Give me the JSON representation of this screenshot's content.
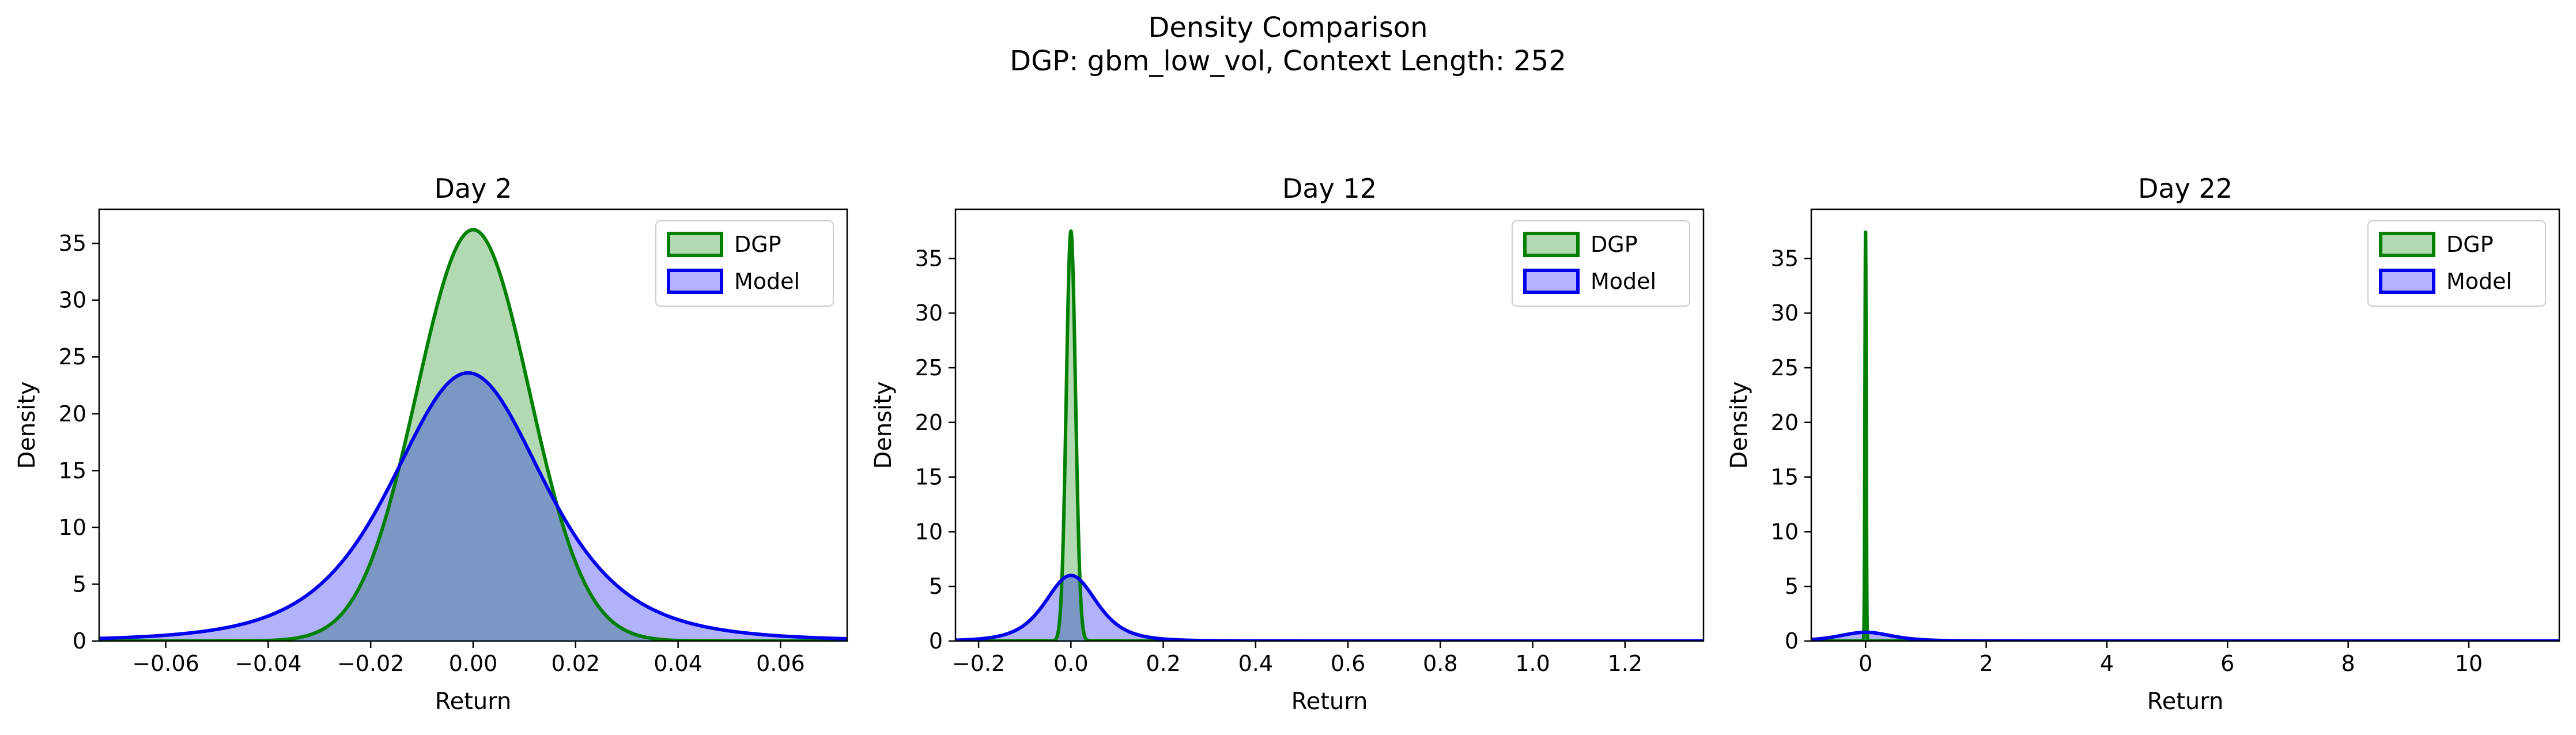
{
  "figure": {
    "suptitle": "Density Comparison",
    "subtitle": "DGP: gbm_low_vol, Context Length: 252"
  },
  "colors": {
    "dgp_line": "#008000",
    "dgp_fill": "#b3d9b3",
    "model_line": "#0000ee",
    "model_fill": "#b3b3ff",
    "overlap_fill": "#7f9bcc"
  },
  "chart_data": [
    {
      "type": "area",
      "title": "Day 2",
      "xlabel": "Return",
      "ylabel": "Density",
      "xlim": [
        -0.073,
        0.073
      ],
      "ylim": [
        0,
        38
      ],
      "xticks": [
        -0.06,
        -0.04,
        -0.02,
        0.0,
        0.02,
        0.04,
        0.06
      ],
      "xtick_labels": [
        "−0.06",
        "−0.04",
        "−0.02",
        "0.00",
        "0.02",
        "0.04",
        "0.06"
      ],
      "yticks": [
        0,
        5,
        10,
        15,
        20,
        25,
        30,
        35
      ],
      "legend": "top-right",
      "series": [
        {
          "name": "DGP",
          "dist": "normal",
          "mean": 0.0,
          "peak": 36.2
        },
        {
          "name": "Model",
          "dist": "student_t",
          "mean": -0.001,
          "peak": 23.6
        }
      ]
    },
    {
      "type": "area",
      "title": "Day 12",
      "xlabel": "Return",
      "ylabel": "Density",
      "xlim": [
        -0.25,
        1.37
      ],
      "ylim": [
        0,
        39.5
      ],
      "xticks": [
        -0.2,
        0.0,
        0.2,
        0.4,
        0.6,
        0.8,
        1.0,
        1.2
      ],
      "xtick_labels": [
        "−0.2",
        "0.0",
        "0.2",
        "0.4",
        "0.6",
        "0.8",
        "1.0",
        "1.2"
      ],
      "yticks": [
        0,
        5,
        10,
        15,
        20,
        25,
        30,
        35
      ],
      "legend": "top-right",
      "series": [
        {
          "name": "DGP",
          "dist": "normal",
          "mean": 0.0,
          "peak": 37.5
        },
        {
          "name": "Model",
          "dist": "student_t",
          "mean": 0.0,
          "peak": 6.0
        }
      ]
    },
    {
      "type": "area",
      "title": "Day 22",
      "xlabel": "Return",
      "ylabel": "Density",
      "xlim": [
        -0.9,
        11.5
      ],
      "ylim": [
        0,
        39.5
      ],
      "xticks": [
        0,
        2,
        4,
        6,
        8,
        10
      ],
      "xtick_labels": [
        "0",
        "2",
        "4",
        "6",
        "8",
        "10"
      ],
      "yticks": [
        0,
        5,
        10,
        15,
        20,
        25,
        30,
        35
      ],
      "legend": "top-right",
      "series": [
        {
          "name": "DGP",
          "dist": "normal",
          "mean": 0.0,
          "peak": 37.5
        },
        {
          "name": "Model",
          "dist": "student_t",
          "mean": 0.0,
          "peak": 0.8
        }
      ]
    }
  ]
}
